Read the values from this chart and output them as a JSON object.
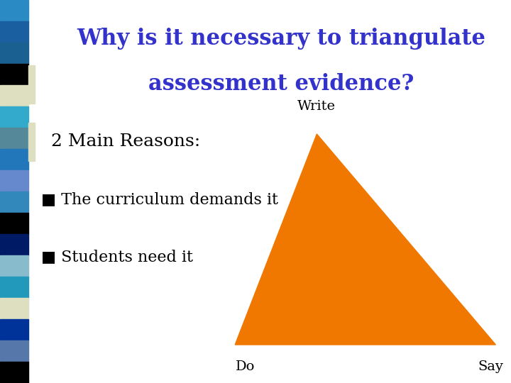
{
  "title_line1": "Why is it necessary to triangulate",
  "title_line2": "assessment evidence?",
  "title_color": "#3333cc",
  "title_fontsize": 22,
  "bg_color": "#ffffff",
  "subtitle": "2 Main Reasons:",
  "subtitle_fontsize": 18,
  "subtitle_color": "#000000",
  "bullet1": "■ The curriculum demands it",
  "bullet2": "■ Students need it",
  "bullet_fontsize": 16,
  "bullet_color": "#000000",
  "triangle_color": "#f07800",
  "label_write": "Write",
  "label_do": "Do",
  "label_say": "Say",
  "label_fontsize": 14,
  "label_color": "#000000",
  "bar_colors": [
    "#2a8ac4",
    "#1a5fa0",
    "#1a6090",
    "#000000",
    "#dddfc0",
    "#33aacc",
    "#558899",
    "#2277bb",
    "#6688cc",
    "#3388bb",
    "#000000",
    "#001a66",
    "#88bbcc",
    "#2299bb",
    "#dddfc0",
    "#003399",
    "#5577aa",
    "#000000"
  ]
}
